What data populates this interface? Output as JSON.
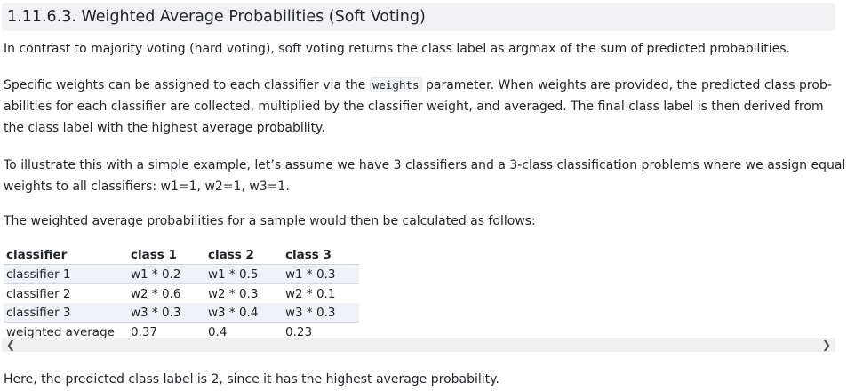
{
  "section": {
    "title": "1.11.6.3. Weighted Average Probabilities (Soft Voting)"
  },
  "paragraphs": {
    "p1": "In contrast to majority voting (hard voting), soft voting returns the class label as argmax of the sum of predicted probabilities.",
    "p2_before": "Specific weights can be assigned to each classifier via the ",
    "p2_code": "weights",
    "p2_line1_after": " parameter. When weights are provided, the predicted class prob-",
    "p2_line2": "abilities for each classifier are collected, multiplied by the classifier weight, and averaged. The final class label is then derived from",
    "p2_line3": "the class label with the highest average probability.",
    "p3_line1": "To illustrate this with a simple example, let’s assume we have 3 classifiers and a 3-class classification problems where we assign equal",
    "p3_line2": "weights to all classifiers: w1=1, w2=1, w3=1.",
    "p4": "The weighted average probabilities for a sample would then be calculated as follows:",
    "p5": "Here, the predicted class label is 2, since it has the highest average probability."
  },
  "table": {
    "headers": [
      "classifier",
      "class 1",
      "class 2",
      "class 3"
    ],
    "rows": [
      [
        "classifier 1",
        "w1 * 0.2",
        "w1 * 0.5",
        "w1 * 0.3"
      ],
      [
        "classifier 2",
        "w2 * 0.6",
        "w2 * 0.3",
        "w2 * 0.1"
      ],
      [
        "classifier 3",
        "w3 * 0.3",
        "w3 * 0.4",
        "w3 * 0.3"
      ],
      [
        "weighted average",
        "0.37",
        "0.4",
        "0.23"
      ]
    ]
  },
  "scrollbar": {
    "left_arrow": "❮",
    "right_arrow": "❯"
  }
}
